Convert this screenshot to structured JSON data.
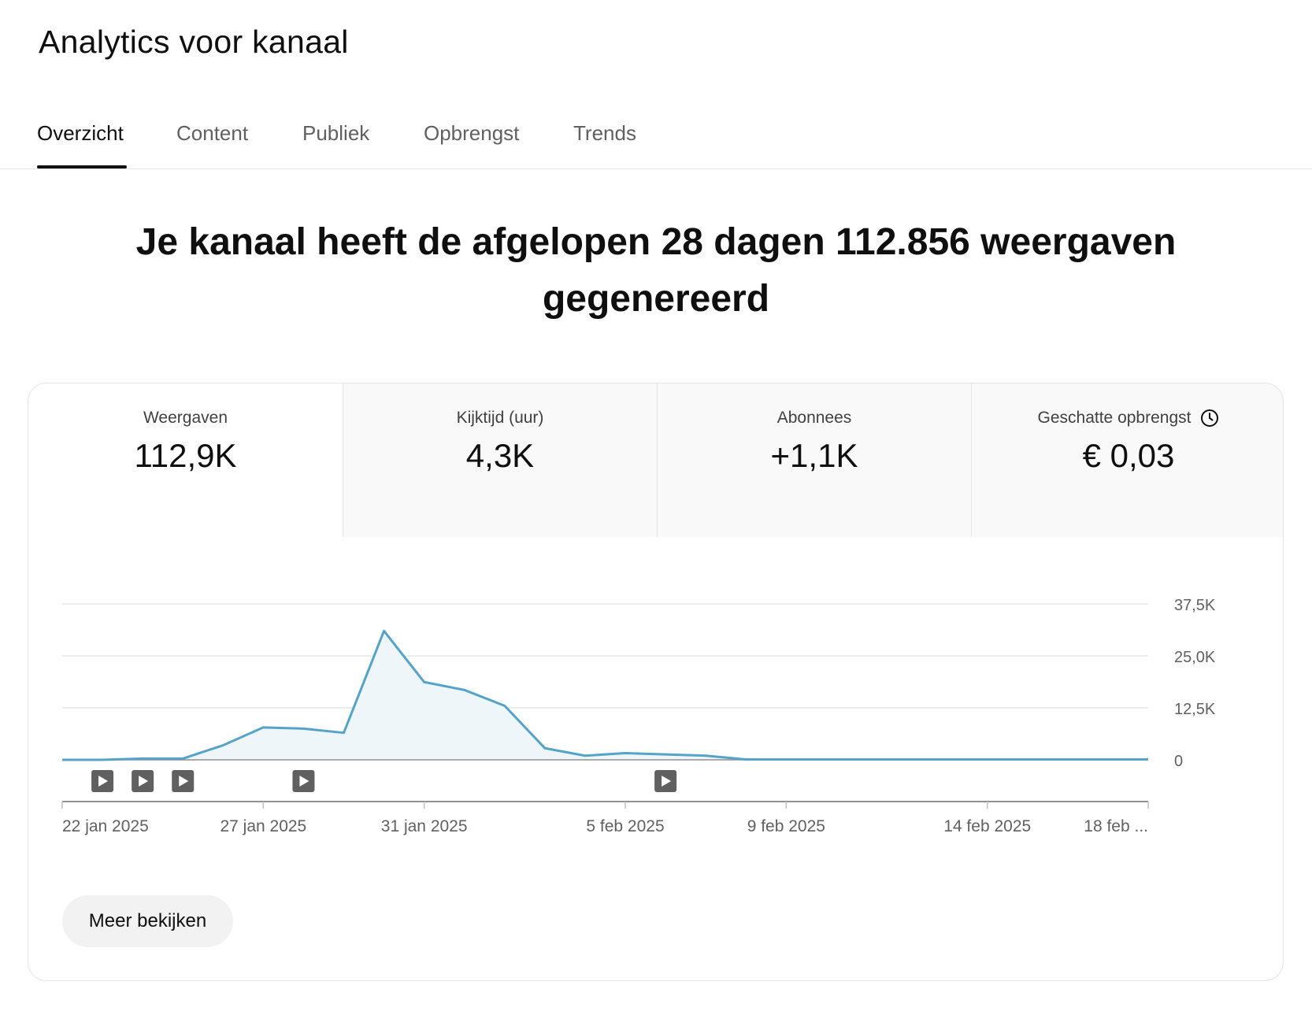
{
  "header": {
    "title": "Analytics voor kanaal"
  },
  "tabs": [
    {
      "label": "Overzicht",
      "active": true
    },
    {
      "label": "Content",
      "active": false
    },
    {
      "label": "Publiek",
      "active": false
    },
    {
      "label": "Opbrengst",
      "active": false
    },
    {
      "label": "Trends",
      "active": false
    }
  ],
  "headline": "Je kanaal heeft de afgelopen 28 dagen 112.856 weergaven gegenereerd",
  "metrics": [
    {
      "label": "Weergaven",
      "value": "112,9K",
      "selected": true
    },
    {
      "label": "Kijktijd (uur)",
      "value": "4,3K",
      "selected": false
    },
    {
      "label": "Abonnees",
      "value": "+1,1K",
      "selected": false
    },
    {
      "label": "Geschatte opbrengst",
      "value": "€ 0,03",
      "selected": false,
      "icon": "clock-icon"
    }
  ],
  "colors": {
    "line": "#55a3c8",
    "fill": "#eef6f9",
    "grid": "#e5e5e5",
    "marker": "#606060"
  },
  "chart_data": {
    "type": "area",
    "x": [
      "2025-01-22",
      "2025-01-23",
      "2025-01-24",
      "2025-01-25",
      "2025-01-26",
      "2025-01-27",
      "2025-01-28",
      "2025-01-29",
      "2025-01-30",
      "2025-01-31",
      "2025-02-01",
      "2025-02-02",
      "2025-02-03",
      "2025-02-04",
      "2025-02-05",
      "2025-02-06",
      "2025-02-07",
      "2025-02-08",
      "2025-02-09",
      "2025-02-10",
      "2025-02-11",
      "2025-02-12",
      "2025-02-13",
      "2025-02-14",
      "2025-02-15",
      "2025-02-16",
      "2025-02-17",
      "2025-02-18"
    ],
    "series": [
      {
        "values": [
          0,
          0,
          300,
          300,
          3500,
          7800,
          7500,
          6500,
          31000,
          18700,
          16800,
          13000,
          2800,
          1000,
          1600,
          1300,
          1000,
          100,
          100,
          100,
          100,
          100,
          100,
          100,
          100,
          100,
          100,
          100
        ]
      }
    ],
    "x_tick_labels": [
      "22 jan 2025",
      "27 jan 2025",
      "31 jan 2025",
      "5 feb 2025",
      "9 feb 2025",
      "14 feb 2025",
      "18 feb ..."
    ],
    "x_tick_dates": [
      "2025-01-22",
      "2025-01-27",
      "2025-01-31",
      "2025-02-05",
      "2025-02-09",
      "2025-02-14",
      "2025-02-18"
    ],
    "y_tick_labels": [
      "0",
      "12,5K",
      "25,0K",
      "37,5K"
    ],
    "y_ticks": [
      0,
      12500,
      25000,
      37500
    ],
    "ylim": [
      0,
      37500
    ],
    "grid": true,
    "video_markers": [
      "2025-01-23",
      "2025-01-24",
      "2025-01-25",
      "2025-01-28",
      "2025-02-06"
    ]
  },
  "actions": {
    "more_label": "Meer bekijken"
  }
}
